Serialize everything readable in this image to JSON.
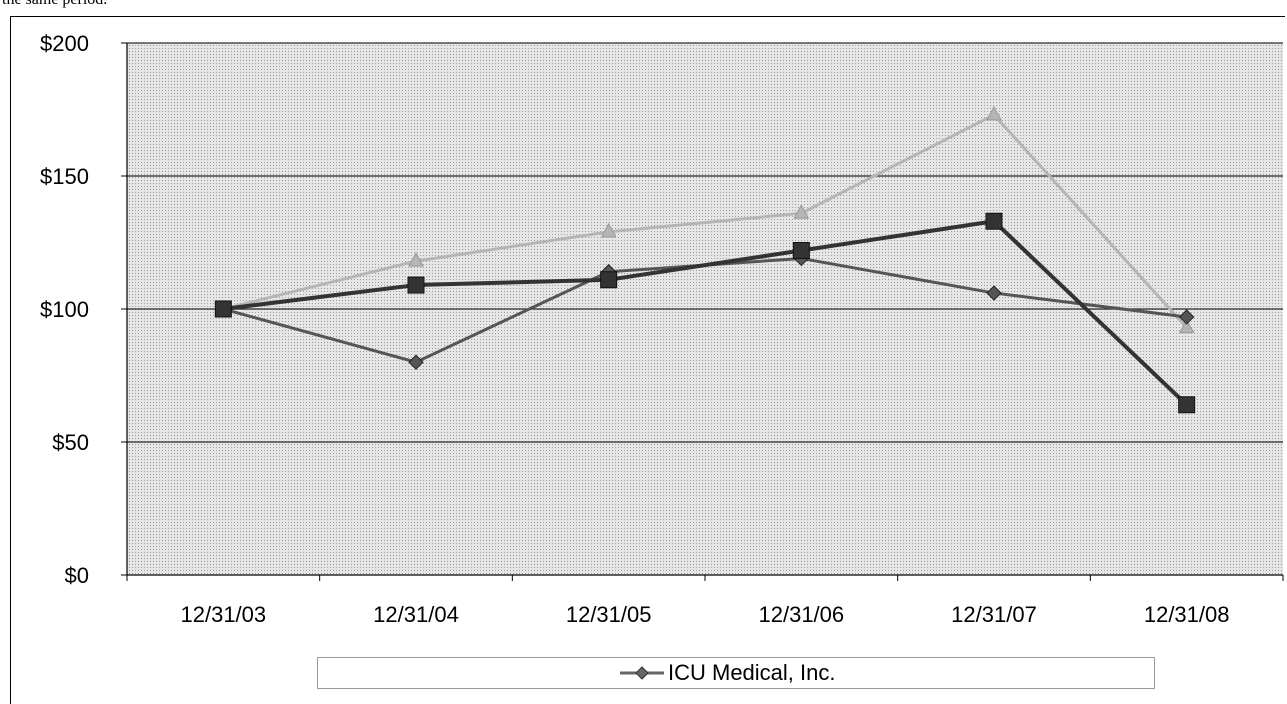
{
  "header": {
    "text": "the same period."
  },
  "chart_data": {
    "type": "line",
    "categories": [
      "12/31/03",
      "12/31/04",
      "12/31/05",
      "12/31/06",
      "12/31/07",
      "12/31/08"
    ],
    "y_ticks": [
      "$0",
      "$50",
      "$100",
      "$150",
      "$200"
    ],
    "ylim": [
      0,
      200
    ],
    "grid": true,
    "legend": {
      "position": "bottom"
    },
    "series": [
      {
        "name": "ICU Medical, Inc.",
        "values": [
          100,
          80,
          114,
          119,
          106,
          97
        ],
        "color": "#555555",
        "marker": "diamond"
      },
      {
        "values": [
          100,
          109,
          111,
          122,
          133,
          64
        ],
        "color": "#333333",
        "marker": "square"
      },
      {
        "values": [
          100,
          118,
          129,
          136,
          173,
          93
        ],
        "color": "#b5b5b5",
        "marker": "triangle"
      }
    ],
    "plot_background": "#d9d9d9"
  }
}
